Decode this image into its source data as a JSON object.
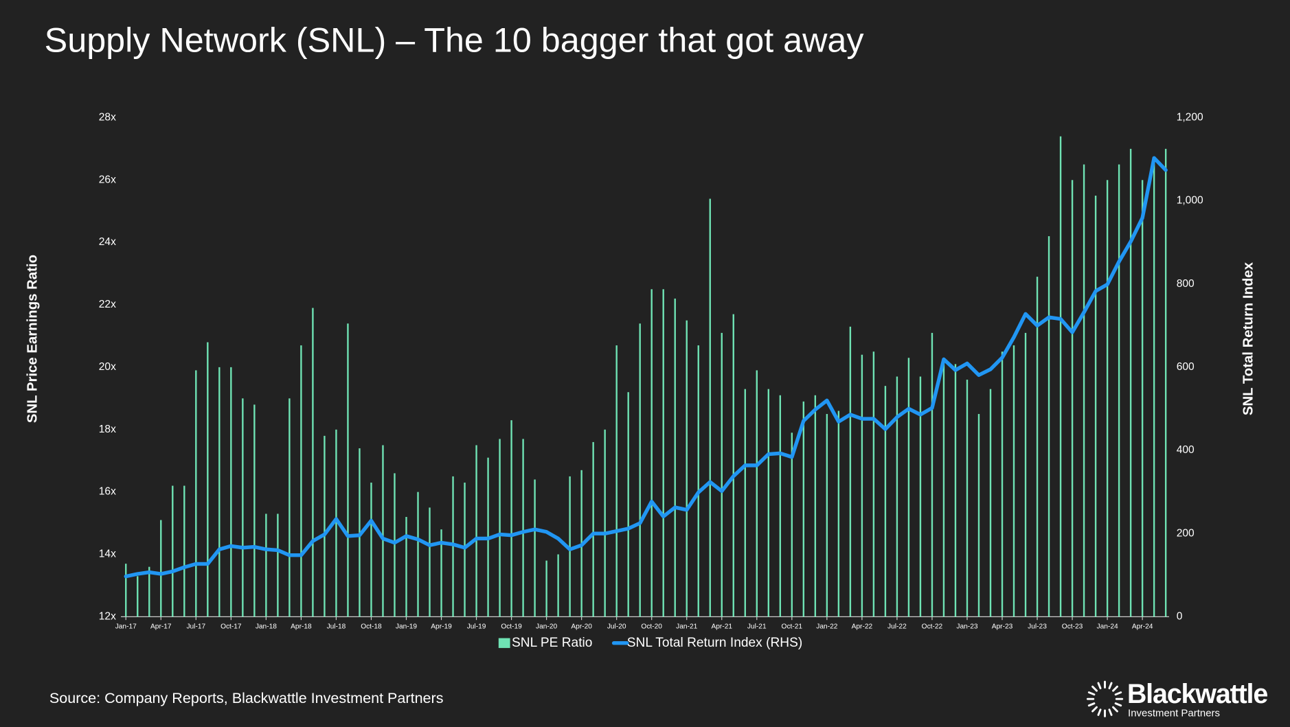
{
  "chart_data": {
    "type": "bar",
    "title": "Supply Network (SNL) – The 10 bagger that got away",
    "ylabel": "SNL Price Earnings Ratio",
    "y2label": "SNL Total Return Index",
    "categories": [
      "Jan-17",
      null,
      null,
      "Apr-17",
      null,
      null,
      "Jul-17",
      null,
      null,
      "Oct-17",
      null,
      null,
      "Jan-18",
      null,
      null,
      "Apr-18",
      null,
      null,
      "Jul-18",
      null,
      null,
      "Oct-18",
      null,
      null,
      "Jan-19",
      null,
      null,
      "Apr-19",
      null,
      null,
      "Jul-19",
      null,
      null,
      "Oct-19",
      null,
      null,
      "Jan-20",
      null,
      null,
      "Apr-20",
      null,
      null,
      "Jul-20",
      null,
      null,
      "Oct-20",
      null,
      null,
      "Jan-21",
      null,
      null,
      "Apr-21",
      null,
      null,
      "Jul-21",
      null,
      null,
      "Oct-21",
      null,
      null,
      "Jan-22",
      null,
      null,
      "Apr-22",
      null,
      null,
      "Jul-22",
      null,
      null,
      "Oct-22",
      null,
      null,
      "Jan-23",
      null,
      null,
      "Apr-23",
      null,
      null,
      "Jul-23",
      null,
      null,
      "Oct-23",
      null,
      null,
      "Jan-24",
      null,
      null,
      "Apr-24",
      null,
      null
    ],
    "series": [
      {
        "name": "SNL PE Ratio",
        "type": "bar",
        "axis": "y",
        "color": "#6fe3b4",
        "values": [
          13.7,
          13.3,
          13.6,
          15.1,
          16.2,
          16.2,
          19.9,
          20.8,
          20.0,
          20.0,
          19.0,
          18.8,
          15.3,
          15.3,
          19.0,
          20.7,
          21.9,
          17.8,
          18.0,
          21.4,
          17.4,
          16.3,
          17.5,
          16.6,
          15.2,
          16.0,
          15.5,
          14.8,
          16.5,
          16.3,
          17.5,
          17.1,
          17.7,
          18.3,
          17.7,
          16.4,
          13.8,
          14.0,
          16.5,
          16.7,
          17.6,
          18.0,
          20.7,
          19.2,
          21.4,
          22.5,
          22.5,
          22.2,
          21.5,
          20.7,
          25.4,
          21.1,
          21.7,
          19.3,
          19.9,
          19.3,
          19.1,
          17.9,
          18.9,
          19.1,
          18.5,
          18.6,
          21.3,
          20.4,
          20.5,
          19.4,
          19.7,
          20.3,
          19.7,
          21.1,
          20.3,
          20.1,
          19.6,
          18.5,
          19.3,
          20.5,
          20.7,
          21.1,
          22.9,
          24.2,
          27.4,
          26.0,
          26.5,
          25.5,
          26.0,
          26.5,
          27.0,
          26.0,
          26.6,
          27.0
        ]
      },
      {
        "name": "SNL Total Return Index (RHS)",
        "type": "line",
        "axis": "y2",
        "color": "#2196f3",
        "values": [
          97,
          103,
          107,
          103,
          109,
          119,
          127,
          127,
          162,
          170,
          166,
          168,
          162,
          160,
          148,
          148,
          182,
          198,
          235,
          194,
          196,
          231,
          188,
          178,
          194,
          186,
          172,
          178,
          174,
          166,
          188,
          188,
          198,
          196,
          204,
          210,
          204,
          188,
          162,
          172,
          200,
          200,
          206,
          212,
          225,
          277,
          241,
          263,
          257,
          299,
          324,
          302,
          338,
          364,
          364,
          391,
          393,
          384,
          471,
          498,
          520,
          469,
          486,
          476,
          476,
          451,
          480,
          500,
          486,
          502,
          619,
          593,
          609,
          581,
          595,
          623,
          672,
          728,
          700,
          720,
          716,
          684,
          732,
          783,
          799,
          854,
          902,
          959,
          1103,
          1074
        ]
      }
    ],
    "ylim": [
      12,
      28
    ],
    "yticks": [
      {
        "value": 12,
        "label": "12x"
      },
      {
        "value": 14,
        "label": "14x"
      },
      {
        "value": 16,
        "label": "16x"
      },
      {
        "value": 18,
        "label": "18x"
      },
      {
        "value": 20,
        "label": "20x"
      },
      {
        "value": 22,
        "label": "22x"
      },
      {
        "value": 24,
        "label": "24x"
      },
      {
        "value": 26,
        "label": "26x"
      },
      {
        "value": 28,
        "label": "28x"
      }
    ],
    "y2lim": [
      0,
      1200
    ],
    "y2ticks": [
      0,
      200,
      400,
      600,
      800,
      {
        "value": 1000,
        "label": "1,000"
      },
      {
        "value": 1200,
        "label": "1,200"
      }
    ],
    "legend": "bottom"
  },
  "footer": {
    "source": "Source: Company Reports, Blackwattle Investment Partners",
    "logo": {
      "name": "Blackwattle",
      "tagline": "Investment Partners"
    }
  }
}
